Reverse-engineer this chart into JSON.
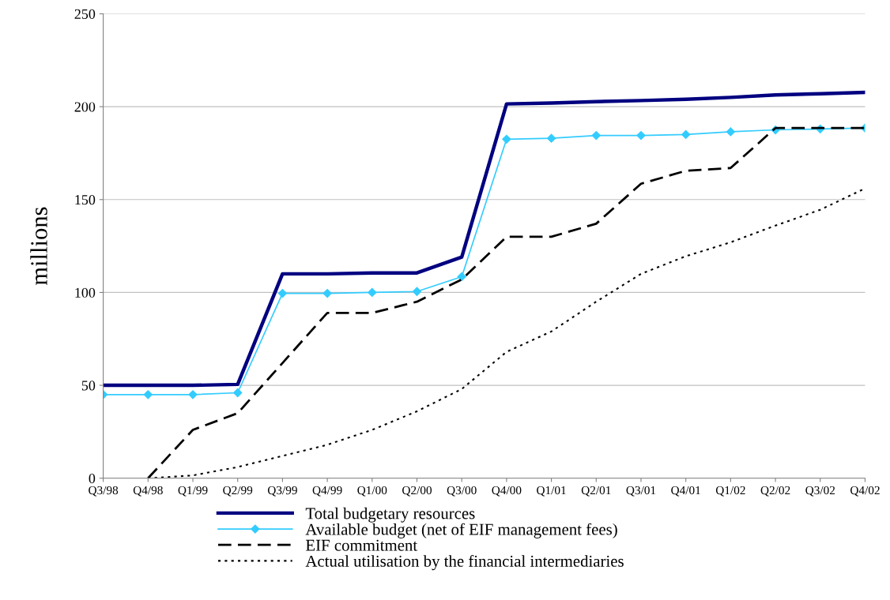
{
  "chart_data": {
    "type": "line",
    "ylabel": "millions",
    "categories": [
      "Q3/98",
      "Q4/98",
      "Q1/99",
      "Q2/99",
      "Q3/99",
      "Q4/99",
      "Q1/00",
      "Q2/00",
      "Q3/00",
      "Q4/00",
      "Q1/01",
      "Q2/01",
      "Q3/01",
      "Q4/01",
      "Q1/02",
      "Q2/02",
      "Q3/02",
      "Q4/02"
    ],
    "series": [
      {
        "name": "Total budgetary resources",
        "color": "#000080",
        "line_style": "solid",
        "marker": "none",
        "values": [
          50,
          50,
          50,
          50.5,
          110,
          110,
          110.5,
          110.5,
          119,
          201.5,
          202,
          202.7,
          203.3,
          204,
          205,
          206.3,
          207,
          207.7
        ]
      },
      {
        "name": "Available budget (net of EIF management fees)",
        "color": "#33ccff",
        "line_style": "solid",
        "marker": "diamond",
        "values": [
          45,
          45,
          45,
          46,
          99.5,
          99.5,
          100,
          100.5,
          108.5,
          182.5,
          183,
          184.5,
          184.5,
          185,
          186.5,
          187.5,
          188,
          188.5
        ]
      },
      {
        "name": "EIF commitment",
        "color": "#000000",
        "line_style": "dashed",
        "marker": "none",
        "values": [
          null,
          0,
          26,
          35,
          62,
          89,
          89,
          95,
          107,
          130,
          130,
          137,
          158.5,
          165.5,
          167,
          188.5,
          188.5,
          188.5
        ]
      },
      {
        "name": "Actual utilisation by the financial intermediaries",
        "color": "#000000",
        "line_style": "dotted",
        "marker": "none",
        "values": [
          null,
          0,
          1.5,
          6,
          12,
          18,
          26,
          36,
          48,
          68,
          79,
          95,
          110,
          119.5,
          127,
          136,
          144.5,
          156
        ]
      }
    ],
    "ylim": [
      0,
      250
    ],
    "yticks": [
      0,
      50,
      100,
      150,
      200,
      250
    ],
    "grid": "y",
    "legend": "bottom"
  }
}
